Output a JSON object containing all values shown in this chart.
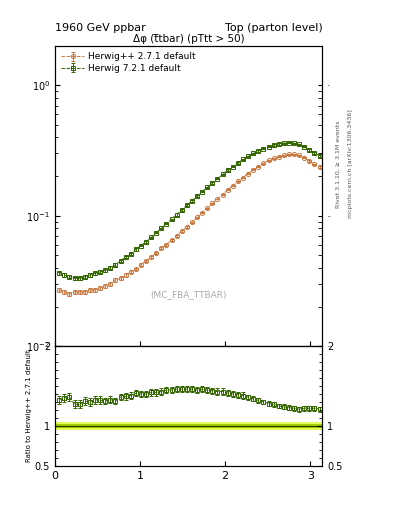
{
  "title_left": "1960 GeV ppbar",
  "title_right": "Top (parton level)",
  "plot_title": "Δφ (t̅tbar) (pTtt > 50)",
  "watermark": "(MC_FBA_TTBAR)",
  "right_label": "Rivet 3.1.10, ≥ 3.1M events",
  "right_label2": "mcplots.cern.ch [arXiv:1306.3436]",
  "legend1": "Herwig++ 2.7.1 default",
  "legend2": "Herwig 7.2.1 default",
  "color1": "#c87941",
  "color2": "#336600",
  "xmin": 0,
  "xmax": 3.14159,
  "ymin": 0.01,
  "ymax": 2.0,
  "ratio_ymin": 0.5,
  "ratio_ymax": 2.0,
  "x_hw1": [
    0.05,
    0.11,
    0.17,
    0.23,
    0.29,
    0.35,
    0.41,
    0.47,
    0.53,
    0.59,
    0.65,
    0.71,
    0.77,
    0.83,
    0.89,
    0.95,
    1.01,
    1.07,
    1.13,
    1.19,
    1.25,
    1.31,
    1.37,
    1.43,
    1.49,
    1.55,
    1.61,
    1.67,
    1.73,
    1.79,
    1.85,
    1.91,
    1.97,
    2.03,
    2.09,
    2.15,
    2.21,
    2.27,
    2.33,
    2.39,
    2.45,
    2.51,
    2.57,
    2.63,
    2.69,
    2.75,
    2.81,
    2.87,
    2.93,
    2.99,
    3.05,
    3.11
  ],
  "y_hw1": [
    0.027,
    0.026,
    0.025,
    0.026,
    0.026,
    0.026,
    0.027,
    0.027,
    0.028,
    0.029,
    0.03,
    0.032,
    0.033,
    0.035,
    0.037,
    0.039,
    0.042,
    0.045,
    0.048,
    0.052,
    0.056,
    0.06,
    0.065,
    0.07,
    0.076,
    0.082,
    0.089,
    0.097,
    0.105,
    0.114,
    0.124,
    0.134,
    0.145,
    0.158,
    0.17,
    0.183,
    0.196,
    0.21,
    0.224,
    0.238,
    0.252,
    0.265,
    0.275,
    0.283,
    0.29,
    0.295,
    0.296,
    0.29,
    0.278,
    0.262,
    0.248,
    0.237
  ],
  "yerr_hw1": [
    0.001,
    0.001,
    0.001,
    0.001,
    0.001,
    0.001,
    0.001,
    0.001,
    0.001,
    0.001,
    0.001,
    0.001,
    0.001,
    0.001,
    0.001,
    0.001,
    0.001,
    0.001,
    0.001,
    0.001,
    0.001,
    0.001,
    0.001,
    0.001,
    0.001,
    0.001,
    0.001,
    0.001,
    0.001,
    0.001,
    0.001,
    0.001,
    0.001,
    0.002,
    0.002,
    0.002,
    0.002,
    0.002,
    0.002,
    0.002,
    0.002,
    0.002,
    0.003,
    0.003,
    0.003,
    0.003,
    0.003,
    0.003,
    0.003,
    0.003,
    0.003,
    0.003
  ],
  "x_hw2": [
    0.05,
    0.11,
    0.17,
    0.23,
    0.29,
    0.35,
    0.41,
    0.47,
    0.53,
    0.59,
    0.65,
    0.71,
    0.77,
    0.83,
    0.89,
    0.95,
    1.01,
    1.07,
    1.13,
    1.19,
    1.25,
    1.31,
    1.37,
    1.43,
    1.49,
    1.55,
    1.61,
    1.67,
    1.73,
    1.79,
    1.85,
    1.91,
    1.97,
    2.03,
    2.09,
    2.15,
    2.21,
    2.27,
    2.33,
    2.39,
    2.45,
    2.51,
    2.57,
    2.63,
    2.69,
    2.75,
    2.81,
    2.87,
    2.93,
    2.99,
    3.05,
    3.11
  ],
  "y_hw2": [
    0.036,
    0.035,
    0.034,
    0.033,
    0.033,
    0.034,
    0.035,
    0.036,
    0.037,
    0.038,
    0.04,
    0.042,
    0.045,
    0.048,
    0.051,
    0.055,
    0.059,
    0.063,
    0.068,
    0.074,
    0.08,
    0.087,
    0.094,
    0.102,
    0.111,
    0.12,
    0.13,
    0.141,
    0.153,
    0.165,
    0.178,
    0.192,
    0.207,
    0.223,
    0.238,
    0.254,
    0.27,
    0.285,
    0.3,
    0.314,
    0.327,
    0.339,
    0.348,
    0.355,
    0.36,
    0.362,
    0.36,
    0.352,
    0.338,
    0.32,
    0.302,
    0.288
  ],
  "yerr_hw2": [
    0.001,
    0.001,
    0.001,
    0.001,
    0.001,
    0.001,
    0.001,
    0.001,
    0.001,
    0.001,
    0.001,
    0.001,
    0.001,
    0.001,
    0.001,
    0.001,
    0.001,
    0.001,
    0.001,
    0.001,
    0.001,
    0.001,
    0.001,
    0.002,
    0.002,
    0.002,
    0.002,
    0.002,
    0.002,
    0.002,
    0.002,
    0.002,
    0.003,
    0.003,
    0.003,
    0.003,
    0.003,
    0.003,
    0.003,
    0.004,
    0.004,
    0.004,
    0.004,
    0.004,
    0.004,
    0.004,
    0.004,
    0.004,
    0.004,
    0.004,
    0.004,
    0.005
  ],
  "ratio_y": [
    1.33,
    1.35,
    1.36,
    1.27,
    1.27,
    1.31,
    1.3,
    1.33,
    1.32,
    1.31,
    1.33,
    1.31,
    1.36,
    1.37,
    1.38,
    1.41,
    1.4,
    1.4,
    1.42,
    1.42,
    1.43,
    1.45,
    1.45,
    1.46,
    1.46,
    1.46,
    1.46,
    1.45,
    1.46,
    1.45,
    1.44,
    1.43,
    1.43,
    1.41,
    1.4,
    1.39,
    1.38,
    1.36,
    1.34,
    1.32,
    1.3,
    1.28,
    1.27,
    1.25,
    1.24,
    1.23,
    1.22,
    1.21,
    1.22,
    1.22,
    1.22,
    1.21
  ],
  "ratio_yerr": [
    0.05,
    0.05,
    0.05,
    0.05,
    0.05,
    0.05,
    0.05,
    0.05,
    0.05,
    0.04,
    0.04,
    0.04,
    0.04,
    0.04,
    0.04,
    0.04,
    0.04,
    0.04,
    0.04,
    0.04,
    0.04,
    0.04,
    0.04,
    0.04,
    0.04,
    0.04,
    0.04,
    0.04,
    0.04,
    0.04,
    0.04,
    0.04,
    0.04,
    0.04,
    0.04,
    0.04,
    0.04,
    0.03,
    0.03,
    0.03,
    0.03,
    0.03,
    0.03,
    0.03,
    0.03,
    0.03,
    0.03,
    0.03,
    0.03,
    0.03,
    0.03,
    0.03
  ]
}
